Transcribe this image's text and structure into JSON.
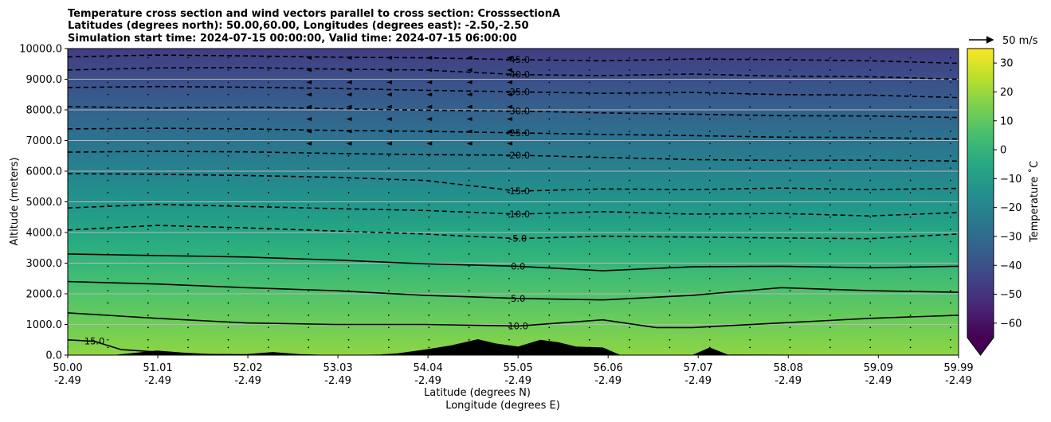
{
  "chart_data": {
    "type": "contour",
    "title_lines": [
      "Temperature cross section and wind vectors parallel to cross section: CrosssectionA",
      "Latitudes (degrees north): 50.00,60.00, Longitudes (degrees east): -2.50,-2.50",
      "Simulation start time: 2024-07-15 00:00:00, Valid time: 2024-07-15 06:00:00"
    ],
    "xlabel": "Latitude (degrees N)",
    "xlabel2": "Longitude (degrees E)",
    "ylabel": "Altitude (meters)",
    "xlim": [
      50.0,
      59.99
    ],
    "ylim": [
      0,
      10000
    ],
    "x_ticks": [
      {
        "lat": 50.0,
        "lat_label": "50.00",
        "lon_label": "-2.49"
      },
      {
        "lat": 51.01,
        "lat_label": "51.01",
        "lon_label": "-2.49"
      },
      {
        "lat": 52.02,
        "lat_label": "52.02",
        "lon_label": "-2.49"
      },
      {
        "lat": 53.03,
        "lat_label": "53.03",
        "lon_label": "-2.49"
      },
      {
        "lat": 54.04,
        "lat_label": "54.04",
        "lon_label": "-2.49"
      },
      {
        "lat": 55.05,
        "lat_label": "55.05",
        "lon_label": "-2.49"
      },
      {
        "lat": 56.06,
        "lat_label": "56.06",
        "lon_label": "-2.49"
      },
      {
        "lat": 57.07,
        "lat_label": "57.07",
        "lon_label": "-2.49"
      },
      {
        "lat": 58.08,
        "lat_label": "58.08",
        "lon_label": "-2.49"
      },
      {
        "lat": 59.09,
        "lat_label": "59.09",
        "lon_label": "-2.49"
      },
      {
        "lat": 59.99,
        "lat_label": "59.99",
        "lon_label": "-2.49"
      }
    ],
    "y_ticks": [
      {
        "value": 0,
        "label": "0.0"
      },
      {
        "value": 1000,
        "label": "1000.0"
      },
      {
        "value": 2000,
        "label": "2000.0"
      },
      {
        "value": 3000,
        "label": "3000.0"
      },
      {
        "value": 4000,
        "label": "4000.0"
      },
      {
        "value": 5000,
        "label": "5000.0"
      },
      {
        "value": 6000,
        "label": "6000.0"
      },
      {
        "value": 7000,
        "label": "7000.0"
      },
      {
        "value": 8000,
        "label": "8000.0"
      },
      {
        "value": 9000,
        "label": "9000.0"
      },
      {
        "value": 10000,
        "label": "10000.0"
      }
    ],
    "grid": "horizontal",
    "colormap": "viridis",
    "colorbar": {
      "label": "Temperature ˚C",
      "range": [
        -65,
        35
      ],
      "ticks": [
        {
          "value": 30,
          "label": "30"
        },
        {
          "value": 20,
          "label": "20"
        },
        {
          "value": 10,
          "label": "10"
        },
        {
          "value": 0,
          "label": "0"
        },
        {
          "value": -10,
          "label": "−10"
        },
        {
          "value": -20,
          "label": "−20"
        },
        {
          "value": -30,
          "label": "−30"
        },
        {
          "value": -40,
          "label": "−40"
        },
        {
          "value": -50,
          "label": "−50"
        },
        {
          "value": -60,
          "label": "−60"
        }
      ],
      "extend": "min",
      "placement": "right"
    },
    "temperature_gradient": [
      {
        "z": 0,
        "t": 18
      },
      {
        "z": 1000,
        "t": 13
      },
      {
        "z": 2000,
        "t": 7
      },
      {
        "z": 3000,
        "t": 1
      },
      {
        "z": 4000,
        "t": -6
      },
      {
        "z": 5000,
        "t": -13
      },
      {
        "z": 6000,
        "t": -20
      },
      {
        "z": 7000,
        "t": -27
      },
      {
        "z": 8000,
        "t": -34
      },
      {
        "z": 9000,
        "t": -41
      },
      {
        "z": 10000,
        "t": -47
      }
    ],
    "contours": [
      {
        "level": -45,
        "label": "-45.0",
        "style": "dashed",
        "points": [
          [
            50.0,
            9730
          ],
          [
            51.0,
            9790
          ],
          [
            52.0,
            9760
          ],
          [
            53.0,
            9720
          ],
          [
            54.0,
            9700
          ],
          [
            55.05,
            9640
          ],
          [
            56.0,
            9600
          ],
          [
            57.0,
            9660
          ],
          [
            58.0,
            9640
          ],
          [
            59.0,
            9600
          ],
          [
            59.99,
            9520
          ]
        ]
      },
      {
        "level": -40,
        "label": "-40.0",
        "style": "dashed",
        "points": [
          [
            50.0,
            9300
          ],
          [
            51.0,
            9370
          ],
          [
            52.0,
            9380
          ],
          [
            53.0,
            9330
          ],
          [
            54.0,
            9300
          ],
          [
            55.05,
            9150
          ],
          [
            56.0,
            9120
          ],
          [
            57.0,
            9170
          ],
          [
            58.0,
            9100
          ],
          [
            59.0,
            9080
          ],
          [
            59.99,
            9000
          ]
        ]
      },
      {
        "level": -35,
        "label": "-35.0",
        "style": "dashed",
        "points": [
          [
            50.0,
            8730
          ],
          [
            51.0,
            8760
          ],
          [
            52.0,
            8740
          ],
          [
            53.0,
            8700
          ],
          [
            54.0,
            8640
          ],
          [
            55.05,
            8590
          ],
          [
            56.0,
            8540
          ],
          [
            57.0,
            8570
          ],
          [
            58.0,
            8500
          ],
          [
            59.0,
            8480
          ],
          [
            59.99,
            8400
          ]
        ]
      },
      {
        "level": -30,
        "label": "-30.0",
        "style": "dashed",
        "points": [
          [
            50.0,
            8110
          ],
          [
            51.0,
            8060
          ],
          [
            52.0,
            8090
          ],
          [
            53.0,
            8040
          ],
          [
            54.0,
            7990
          ],
          [
            55.05,
            7960
          ],
          [
            56.0,
            7900
          ],
          [
            57.0,
            7860
          ],
          [
            58.0,
            7810
          ],
          [
            59.0,
            7800
          ],
          [
            59.99,
            7750
          ]
        ]
      },
      {
        "level": -25,
        "label": "-25.0",
        "style": "dashed",
        "points": [
          [
            50.0,
            7380
          ],
          [
            51.0,
            7400
          ],
          [
            52.0,
            7380
          ],
          [
            53.0,
            7330
          ],
          [
            54.0,
            7300
          ],
          [
            55.05,
            7250
          ],
          [
            56.0,
            7200
          ],
          [
            57.0,
            7160
          ],
          [
            58.0,
            7110
          ],
          [
            59.0,
            7100
          ],
          [
            59.99,
            7050
          ]
        ]
      },
      {
        "level": -20,
        "label": "-20.0",
        "style": "dashed",
        "points": [
          [
            50.0,
            6620
          ],
          [
            51.0,
            6650
          ],
          [
            52.0,
            6630
          ],
          [
            53.0,
            6580
          ],
          [
            54.0,
            6540
          ],
          [
            55.05,
            6520
          ],
          [
            56.0,
            6450
          ],
          [
            57.0,
            6380
          ],
          [
            58.0,
            6350
          ],
          [
            59.0,
            6360
          ],
          [
            59.99,
            6330
          ]
        ]
      },
      {
        "level": -15,
        "label": "-15.0",
        "style": "dashed",
        "points": [
          [
            50.0,
            5920
          ],
          [
            51.0,
            5900
          ],
          [
            52.0,
            5860
          ],
          [
            53.0,
            5800
          ],
          [
            54.0,
            5700
          ],
          [
            55.05,
            5350
          ],
          [
            56.0,
            5420
          ],
          [
            57.0,
            5400
          ],
          [
            58.0,
            5450
          ],
          [
            59.0,
            5400
          ],
          [
            59.99,
            5440
          ]
        ]
      },
      {
        "level": -10,
        "label": "-10.0",
        "style": "dashed",
        "points": [
          [
            50.0,
            4800
          ],
          [
            51.0,
            4920
          ],
          [
            52.0,
            4850
          ],
          [
            53.0,
            4780
          ],
          [
            54.0,
            4720
          ],
          [
            55.05,
            4600
          ],
          [
            56.0,
            4680
          ],
          [
            57.0,
            4600
          ],
          [
            58.0,
            4620
          ],
          [
            59.0,
            4540
          ],
          [
            59.99,
            4650
          ]
        ]
      },
      {
        "level": -5,
        "label": "-5.0",
        "style": "dashed",
        "points": [
          [
            50.0,
            4080
          ],
          [
            51.0,
            4230
          ],
          [
            52.0,
            4150
          ],
          [
            53.0,
            4050
          ],
          [
            54.0,
            3950
          ],
          [
            55.05,
            3800
          ],
          [
            56.0,
            3880
          ],
          [
            57.0,
            3850
          ],
          [
            58.0,
            3820
          ],
          [
            59.0,
            3800
          ],
          [
            59.99,
            3950
          ]
        ]
      },
      {
        "level": 0,
        "label": "0.0",
        "style": "solid",
        "points": [
          [
            50.0,
            3300
          ],
          [
            51.0,
            3250
          ],
          [
            52.0,
            3200
          ],
          [
            53.0,
            3100
          ],
          [
            54.0,
            2980
          ],
          [
            55.05,
            2900
          ],
          [
            56.0,
            2750
          ],
          [
            57.0,
            2880
          ],
          [
            58.0,
            2900
          ],
          [
            59.0,
            2850
          ],
          [
            59.99,
            2900
          ]
        ]
      },
      {
        "level": 5,
        "label": "5.0",
        "style": "solid",
        "points": [
          [
            50.0,
            2400
          ],
          [
            51.0,
            2320
          ],
          [
            52.0,
            2200
          ],
          [
            53.0,
            2100
          ],
          [
            54.0,
            1950
          ],
          [
            55.05,
            1850
          ],
          [
            56.0,
            1800
          ],
          [
            57.0,
            1950
          ],
          [
            58.0,
            2200
          ],
          [
            59.0,
            2100
          ],
          [
            59.99,
            2050
          ]
        ]
      },
      {
        "level": 10,
        "label": "10.0",
        "style": "solid",
        "points": [
          [
            50.0,
            1380
          ],
          [
            51.0,
            1200
          ],
          [
            52.0,
            1050
          ],
          [
            53.0,
            1000
          ],
          [
            54.0,
            1000
          ],
          [
            55.05,
            950
          ],
          [
            56.0,
            1150
          ],
          [
            56.6,
            900
          ],
          [
            57.0,
            900
          ],
          [
            58.0,
            1050
          ],
          [
            59.0,
            1200
          ],
          [
            59.99,
            1300
          ]
        ]
      },
      {
        "level": 15,
        "label": "15.0",
        "style": "solid",
        "points": [
          [
            50.0,
            500
          ],
          [
            50.3,
            450
          ],
          [
            50.6,
            180
          ],
          [
            51.0,
            100
          ]
        ]
      }
    ],
    "orography": [
      [
        50.0,
        0
      ],
      [
        50.5,
        0
      ],
      [
        50.7,
        60
      ],
      [
        51.0,
        150
      ],
      [
        51.3,
        80
      ],
      [
        51.6,
        40
      ],
      [
        52.0,
        30
      ],
      [
        52.3,
        100
      ],
      [
        52.6,
        30
      ],
      [
        53.0,
        0
      ],
      [
        53.5,
        20
      ],
      [
        53.7,
        60
      ],
      [
        54.0,
        180
      ],
      [
        54.3,
        320
      ],
      [
        54.6,
        520
      ],
      [
        54.8,
        380
      ],
      [
        55.05,
        280
      ],
      [
        55.3,
        500
      ],
      [
        55.5,
        420
      ],
      [
        55.7,
        280
      ],
      [
        56.0,
        250
      ],
      [
        56.2,
        0
      ],
      [
        57.0,
        0
      ],
      [
        57.2,
        250
      ],
      [
        57.4,
        20
      ],
      [
        59.99,
        0
      ]
    ],
    "wind_reference": {
      "label": "50 m/s",
      "speed": 50
    },
    "wind_columns": [
      50.0,
      50.45,
      50.9,
      51.35,
      51.8,
      52.25,
      52.7,
      53.15,
      53.6,
      54.05,
      54.5,
      54.95,
      55.4,
      55.85,
      56.3,
      56.75,
      57.2,
      57.65,
      58.1,
      58.55,
      59.0,
      59.45,
      59.9
    ],
    "wind_levels": [
      9700,
      9300,
      8900,
      8500,
      8100,
      7700,
      7300,
      6900,
      6500,
      6100,
      5700,
      5300,
      4900,
      4500,
      4100,
      3700,
      3300,
      2900,
      2500,
      2100,
      1700,
      1300,
      900,
      500,
      250
    ]
  }
}
